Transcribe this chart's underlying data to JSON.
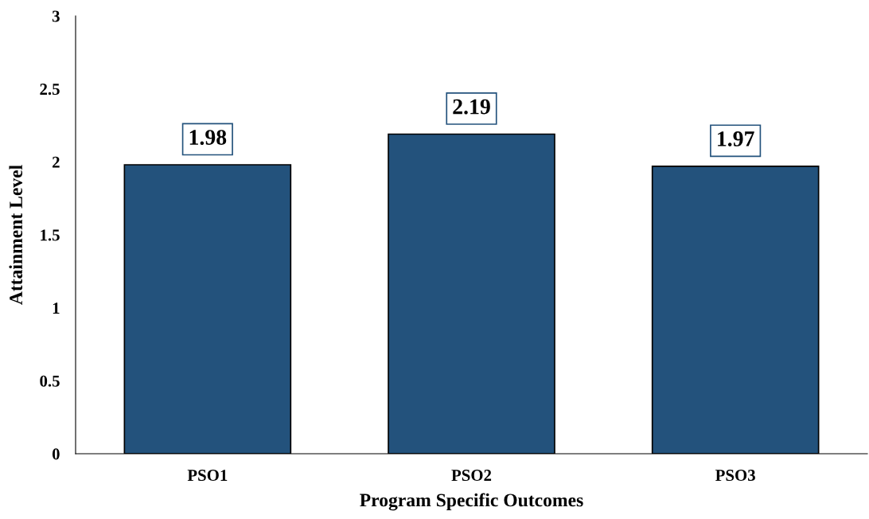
{
  "chart_data": {
    "type": "bar",
    "xlabel": "Program Specific Outcomes",
    "ylabel": "Attainment Level",
    "categories": [
      "PSO1",
      "PSO2",
      "PSO3"
    ],
    "values": [
      1.98,
      2.19,
      1.97
    ],
    "color": "#23527c",
    "ylim": [
      0,
      3
    ],
    "yticks": [
      0,
      0.5,
      1,
      1.5,
      2,
      2.5,
      3
    ],
    "grid": false,
    "data_labels": true
  }
}
